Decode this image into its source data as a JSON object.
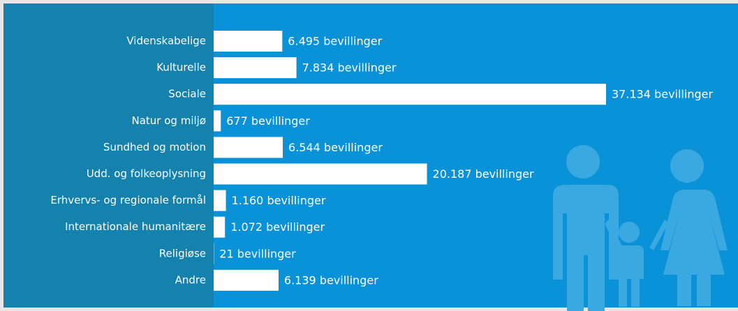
{
  "chart_data": {
    "type": "bar",
    "orientation": "horizontal",
    "categories": [
      "Videnskabelige",
      "Kulturelle",
      "Sociale",
      "Natur og miljø",
      "Sundhed og motion",
      "Udd. og folkeoplysning",
      "Erhvervs- og regionale formål",
      "Internationale humanitære",
      "Religiøse",
      "Andre"
    ],
    "values": [
      6495,
      7834,
      37134,
      677,
      6544,
      20187,
      1160,
      1072,
      21,
      6139
    ],
    "value_labels": [
      "6.495 bevillinger",
      "7.834 bevillinger",
      "37.134 bevillinger",
      "677 bevillinger",
      "6.544 bevillinger",
      "20.187 bevillinger",
      "1.160 bevillinger",
      "1.072 bevillinger",
      "21 bevillinger",
      "6.139 bevillinger"
    ],
    "color": "#ffffff"
  }
}
